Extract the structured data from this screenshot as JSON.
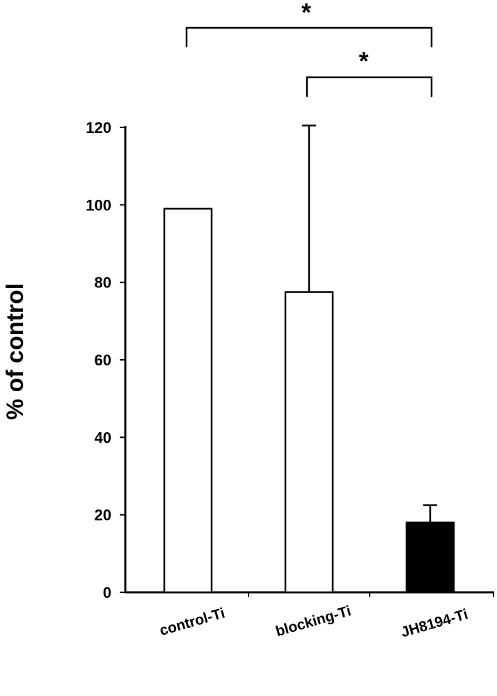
{
  "chart_data": {
    "type": "bar",
    "categories": [
      "control-Ti",
      "blocking-Ti",
      "JH8194-Ti"
    ],
    "values": [
      99,
      77.5,
      18
    ],
    "error_upper": [
      null,
      120.5,
      22.5
    ],
    "bar_fills": [
      "#ffffff",
      "#ffffff",
      "#000000"
    ],
    "xlabel": "",
    "ylabel": "% of control",
    "ylim": [
      0,
      120
    ],
    "yticks": [
      "0",
      "20",
      "40",
      "60",
      "80",
      "100",
      "120"
    ],
    "ytick_values": [
      0,
      20,
      40,
      60,
      80,
      100,
      120
    ],
    "grid": false,
    "significance": [
      {
        "from": "control-Ti",
        "to": "JH8194-Ti",
        "label": "*"
      },
      {
        "from": "blocking-Ti",
        "to": "JH8194-Ti",
        "label": "*"
      }
    ]
  }
}
